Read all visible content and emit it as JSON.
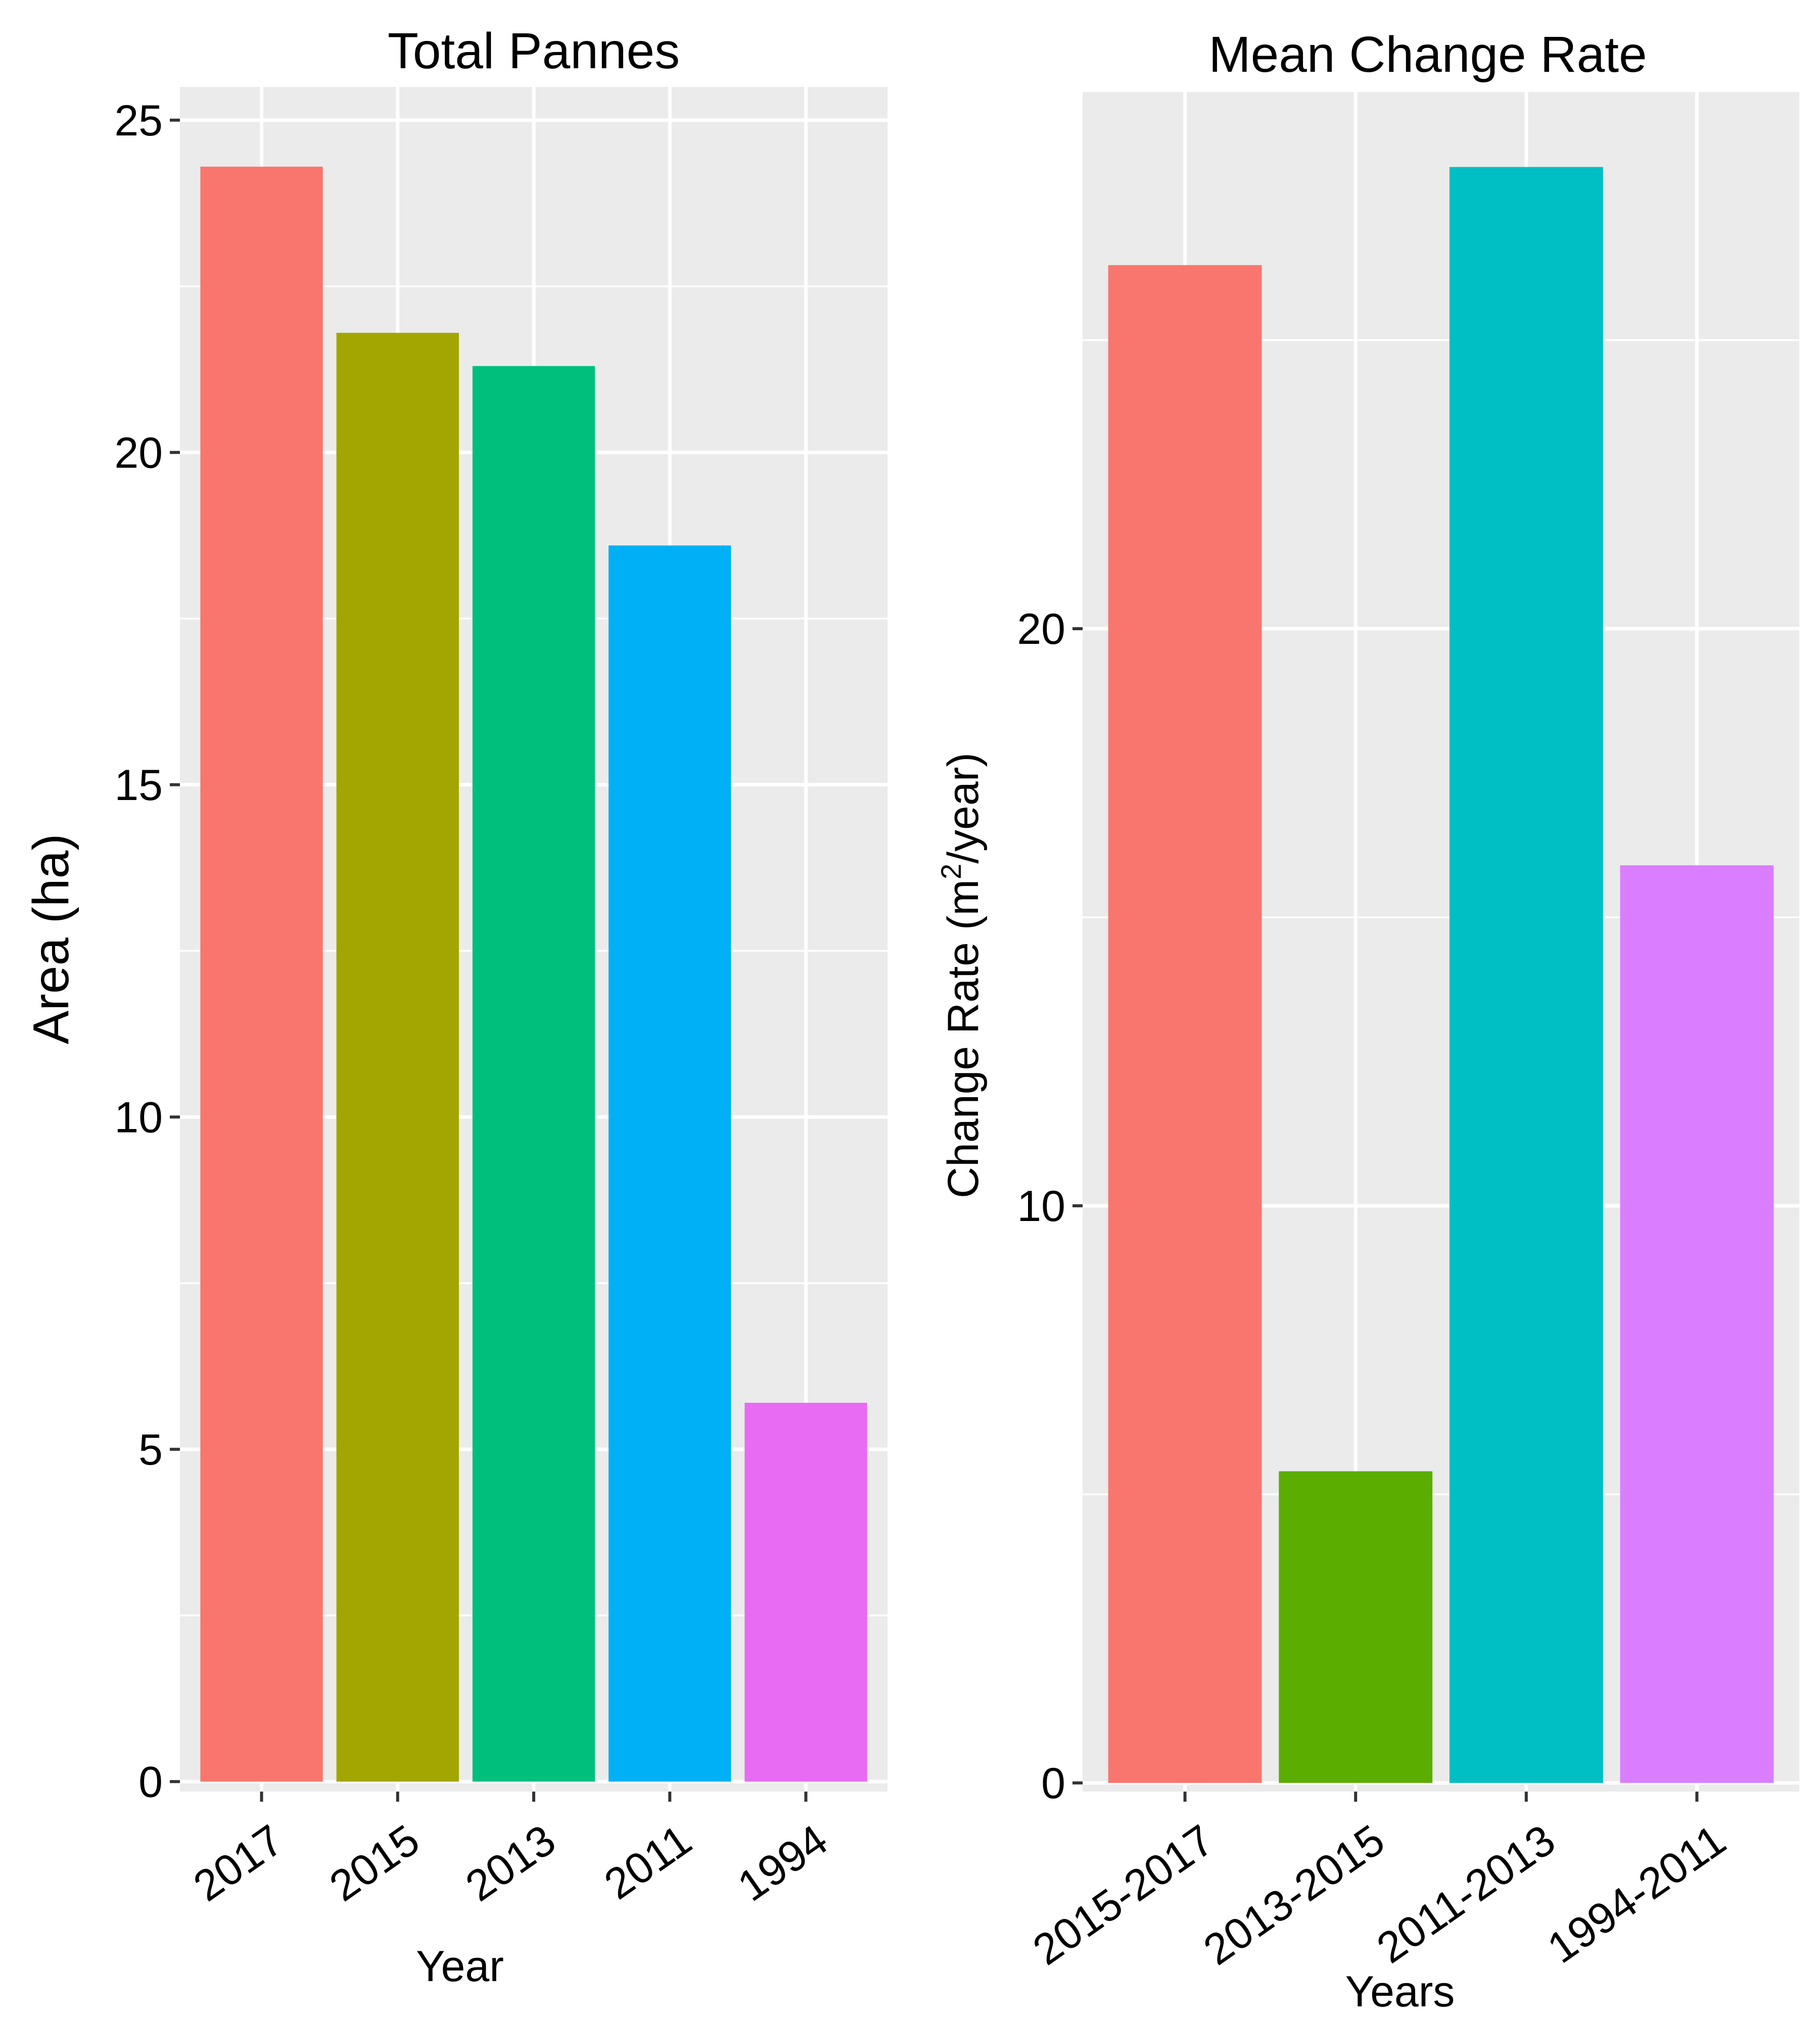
{
  "chart_data": [
    {
      "type": "bar",
      "title": "Total Pannes",
      "xlabel": "Year",
      "ylabel": "Area (ha)",
      "categories": [
        "2017",
        "2015",
        "2013",
        "2011",
        "1994"
      ],
      "values": [
        24.3,
        21.8,
        21.3,
        18.6,
        5.7
      ],
      "colors": [
        "#F8766D",
        "#A3A500",
        "#00BF7D",
        "#00B0F6",
        "#E76BF3"
      ],
      "ylim": [
        -0.15,
        25.5
      ],
      "yticks": [
        0,
        5,
        10,
        15,
        20,
        25
      ],
      "grid": true,
      "legend": "none"
    },
    {
      "type": "bar",
      "title": "Mean Change Rate",
      "xlabel": "Years",
      "ylabel": "Change Rate (m²/year)",
      "ylabel_parts": [
        "Change Rate (m",
        "2",
        "/year)"
      ],
      "categories": [
        "2015-2017",
        "2013-2015",
        "2011-2013",
        "1994-2011"
      ],
      "values": [
        26.3,
        5.4,
        28.0,
        15.9
      ],
      "colors": [
        "#F8766D",
        "#5BAD00",
        "#00BFC4",
        "#DA7EFF"
      ],
      "ylim": [
        -0.15,
        29.3
      ],
      "yticks": [
        0,
        10,
        20
      ],
      "grid": true,
      "legend": "none"
    }
  ]
}
